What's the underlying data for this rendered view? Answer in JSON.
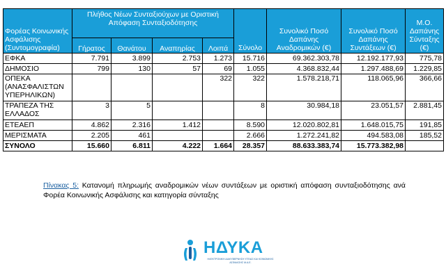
{
  "table": {
    "header": {
      "col_agency": "Φορέας Κοινωνικής Ασφάλισης (Συντομογραφία)",
      "group_title": "Πλήθος Νέων Συνταξιούχων με Οριστική Απόφαση Συνταξιοδότησης",
      "sub_old_age": "Γήρατος",
      "sub_death": "Θανάτου",
      "sub_disability": "Αναπηρίας",
      "sub_other": "Λοιπά",
      "col_total": "Σύνολο",
      "col_retro": "Συνολικό Ποσό Δαπάνης Αναδρομικών (€)",
      "col_pension": "Συνολικό Ποσό Δαπάνης Συντάξεων (€)",
      "col_avg": "Μ.Ο. Δαπάνης Σύνταξης (€)"
    },
    "rows": [
      {
        "agency": "ΕΦΚΑ",
        "old_age": "7.791",
        "death": "3.899",
        "disability": "2.753",
        "other": "1.273",
        "total": "15.716",
        "retro": "69.362.303,78",
        "pension": "12.192.177,93",
        "avg": "775,78"
      },
      {
        "agency": "ΔΗΜΟΣΙΟ",
        "old_age": "799",
        "death": "130",
        "disability": "57",
        "other": "69",
        "total": "1.055",
        "retro": "4.368.832,44",
        "pension": "1.297.488,69",
        "avg": "1.229,85"
      },
      {
        "agency": "ΟΠΕΚΑ (ΑΝΑΣΦΑΛΙΣΤΩΝ ΥΠΕΡΗΛΙΚΩΝ)",
        "old_age": "",
        "death": "",
        "disability": "",
        "other": "322",
        "total": "322",
        "retro": "1.578.218,71",
        "pension": "118.065,96",
        "avg": "366,66"
      },
      {
        "agency": "ΤΡΑΠΕΖΑ ΤΗΣ ΕΛΛΑΔΟΣ",
        "old_age": "3",
        "death": "5",
        "disability": "",
        "other": "",
        "total": "8",
        "retro": "30.984,18",
        "pension": "23.051,57",
        "avg": "2.881,45"
      },
      {
        "agency": "ΕΤΕΑΕΠ",
        "old_age": "4.862",
        "death": "2.316",
        "disability": "1.412",
        "other": "",
        "total": "8.590",
        "retro": "12.020.802,81",
        "pension": "1.648.015,75",
        "avg": "191,85"
      },
      {
        "agency": "ΜΕΡΙΣΜΑΤΑ",
        "old_age": "2.205",
        "death": "461",
        "disability": "",
        "other": "",
        "total": "2.666",
        "retro": "1.272.241,82",
        "pension": "494.583,08",
        "avg": "185,52"
      }
    ],
    "totals": {
      "agency": "ΣΥΝΟΛΟ",
      "old_age": "15.660",
      "death": "6.811",
      "disability": "4.222",
      "other": "1.664",
      "total": "28.357",
      "retro": "88.633.383,74",
      "pension": "15.773.382,98",
      "avg": ""
    }
  },
  "caption": {
    "label": "Πίνακας 5:",
    "text": " Κατανομή πληρωμής αναδρομικών νέων συντάξεων με οριστική απόφαση συνταξιοδότησης ανά Φορέα Κοινωνικής Ασφάλισης και κατηγορία σύνταξης"
  },
  "logo": {
    "name": "ΗΔΥΚΑ",
    "subtitle": "ΗΛΕΚΤΡΟΝΙΚΗ ΔΙΑΚΥΒΕΡΝΗΣΗ ΥΓΕΙΑΣ ΚΑΙ ΚΟΙΝΩΝΙΚΗΣ ΑΣΦΑΛΙΣΗΣ Μ.Α.Ε.",
    "icon": "person-circle-logo-icon",
    "color": "#1a9ed8"
  },
  "colors": {
    "header_bg": "#1a9ed8",
    "caption_label": "#1a5fa0"
  }
}
